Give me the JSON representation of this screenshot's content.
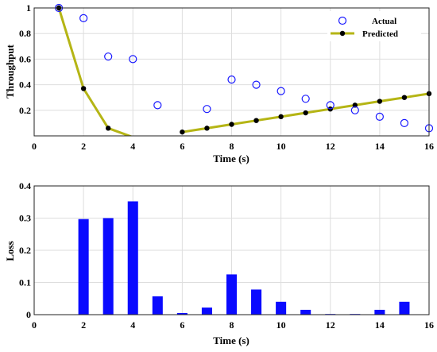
{
  "chart_data": [
    {
      "type": "scatter+line",
      "xlabel": "Time (s)",
      "ylabel": "Throughput",
      "xlim": [
        0,
        16
      ],
      "ylim": [
        0,
        1
      ],
      "xticks": [
        "0",
        "2",
        "4",
        "6",
        "8",
        "10",
        "12",
        "14",
        "16"
      ],
      "yticks": [
        "0.2",
        "0.4",
        "0.6",
        "0.8",
        "1"
      ],
      "grid": true,
      "legend_position": "top-right",
      "series": [
        {
          "name": "Actual",
          "marker": "open-circle",
          "color": "#1a1aff",
          "x": [
            1,
            2,
            3,
            4,
            5,
            7,
            8,
            9,
            10,
            11,
            12,
            13,
            14,
            15,
            16
          ],
          "y": [
            1.0,
            0.92,
            0.62,
            0.6,
            0.24,
            0.21,
            0.44,
            0.4,
            0.35,
            0.29,
            0.24,
            0.2,
            0.15,
            0.1,
            0.06
          ]
        },
        {
          "name": "Predicted",
          "marker": "filled-circle",
          "line_color": "#b5b515",
          "marker_color": "#000000",
          "segments": [
            {
              "x": [
                1,
                2,
                3,
                4
              ],
              "y": [
                1.0,
                0.37,
                0.06,
                -0.01
              ]
            },
            {
              "x": [
                6,
                7,
                8,
                9,
                10,
                11,
                12,
                13,
                14,
                15,
                16
              ],
              "y": [
                0.03,
                0.06,
                0.09,
                0.12,
                0.15,
                0.18,
                0.21,
                0.24,
                0.27,
                0.3,
                0.33
              ]
            }
          ]
        }
      ]
    },
    {
      "type": "bar",
      "xlabel": "Time (s)",
      "ylabel": "Loss",
      "xlim": [
        0,
        16
      ],
      "ylim": [
        0,
        0.4
      ],
      "xticks": [
        "0",
        "2",
        "4",
        "6",
        "8",
        "10",
        "12",
        "14",
        "16"
      ],
      "yticks": [
        "0",
        "0.1",
        "0.2",
        "0.3",
        "0.4"
      ],
      "grid": true,
      "color": "#0a0aff",
      "x": [
        2,
        3,
        4,
        5,
        6,
        7,
        8,
        9,
        10,
        11,
        12,
        13,
        14,
        15
      ],
      "values": [
        0.297,
        0.3,
        0.352,
        0.057,
        0.005,
        0.022,
        0.125,
        0.078,
        0.04,
        0.015,
        0.002,
        0.002,
        0.015,
        0.04
      ]
    }
  ]
}
